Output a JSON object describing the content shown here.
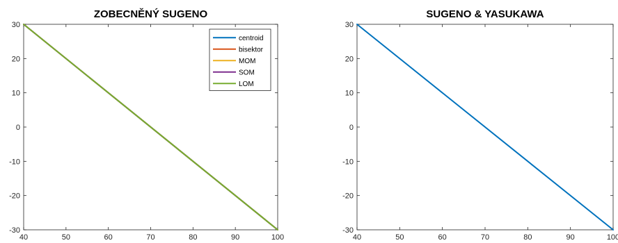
{
  "chart_data": [
    {
      "type": "line",
      "title": "ZOBECNĚNÝ SUGENO",
      "xlabel": "",
      "ylabel": "",
      "xlim": [
        40,
        100
      ],
      "ylim": [
        -30,
        30
      ],
      "xticks": [
        40,
        50,
        60,
        70,
        80,
        90,
        100
      ],
      "yticks": [
        30,
        20,
        10,
        0,
        -10,
        -20,
        -30
      ],
      "grid": false,
      "legend": "top-right",
      "series": [
        {
          "name": "centroid",
          "color": "#0072BD",
          "x": [
            40,
            100
          ],
          "y": [
            30,
            -30
          ]
        },
        {
          "name": "bisektor",
          "color": "#D95319",
          "x": [
            40,
            100
          ],
          "y": [
            30,
            -30
          ]
        },
        {
          "name": "MOM",
          "color": "#EDB120",
          "x": [
            40,
            100
          ],
          "y": [
            30,
            -30
          ]
        },
        {
          "name": "SOM",
          "color": "#7E2F8E",
          "x": [
            40,
            100
          ],
          "y": [
            30,
            -30
          ]
        },
        {
          "name": "LOM",
          "color": "#77AC30",
          "x": [
            40,
            100
          ],
          "y": [
            30,
            -30
          ]
        }
      ]
    },
    {
      "type": "line",
      "title": "SUGENO & YASUKAWA",
      "xlabel": "",
      "ylabel": "",
      "xlim": [
        40,
        100
      ],
      "ylim": [
        -30,
        30
      ],
      "xticks": [
        40,
        50,
        60,
        70,
        80,
        90,
        100
      ],
      "yticks": [
        30,
        20,
        10,
        0,
        -10,
        -20,
        -30
      ],
      "grid": false,
      "legend": "none",
      "series": [
        {
          "color": "#0072BD",
          "x": [
            40,
            100
          ],
          "y": [
            30,
            -30
          ]
        }
      ]
    }
  ]
}
